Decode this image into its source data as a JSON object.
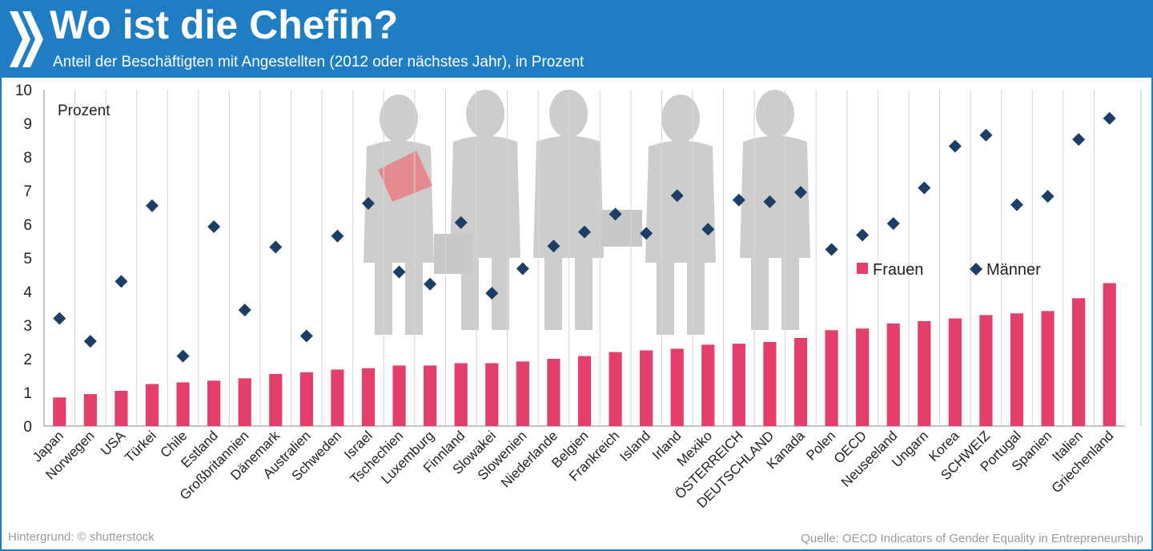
{
  "header": {
    "title": "Wo ist die Chefin?",
    "subtitle": "Anteil der Beschäftigten mit Angestellten (2012 oder nächstes Jahr), in Prozent"
  },
  "footer": {
    "background_credit": "Hintergrund: © shutterstock",
    "source": "Quelle: OECD Indicators of Gender Equality in Entrepreneurship"
  },
  "colors": {
    "header_bg": "#1f7ec3",
    "frauen": "#e33f6a",
    "maenner": "#1c3d66",
    "silhouette": "#c8c8c8"
  },
  "chart_data": {
    "type": "bar",
    "ylabel": "Prozent",
    "ylim": [
      0,
      10
    ],
    "yticks": [
      "0",
      "1",
      "2",
      "3",
      "4",
      "5",
      "6",
      "7",
      "8",
      "9",
      "10"
    ],
    "grid": "vertical",
    "legend": {
      "position": "center-right",
      "frauen_label": "Frauen",
      "maenner_label": "Männer"
    },
    "categories": [
      "Japan",
      "Norwegen",
      "USA",
      "Türkei",
      "Chile",
      "Estland",
      "Großbritannien",
      "Dänemark",
      "Australien",
      "Schweden",
      "Israel",
      "Tschechien",
      "Luxemburg",
      "Finnland",
      "Slowakei",
      "Slowenien",
      "Niederlande",
      "Belgien",
      "Frankreich",
      "Island",
      "Irland",
      "Mexiko",
      "ÖSTERREICH",
      "DEUTSCHLAND",
      "Kanada",
      "Polen",
      "OECD",
      "Neuseeland",
      "Ungarn",
      "Korea",
      "SCHWEIZ",
      "Portugal",
      "Spanien",
      "Italien",
      "Griechenland"
    ],
    "series": [
      {
        "name": "Frauen",
        "marker": "bar",
        "values": [
          0.85,
          0.95,
          1.05,
          1.25,
          1.3,
          1.35,
          1.42,
          1.55,
          1.6,
          1.68,
          1.72,
          1.8,
          1.8,
          1.87,
          1.87,
          1.92,
          2.0,
          2.08,
          2.2,
          2.25,
          2.3,
          2.42,
          2.45,
          2.5,
          2.62,
          2.85,
          2.9,
          3.05,
          3.12,
          3.2,
          3.3,
          3.35,
          3.42,
          3.8,
          4.25
        ]
      },
      {
        "name": "Männer",
        "marker": "diamond",
        "values": [
          3.2,
          2.52,
          4.3,
          6.55,
          2.08,
          5.93,
          3.45,
          5.32,
          2.68,
          5.65,
          6.62,
          4.58,
          4.22,
          6.05,
          3.95,
          4.68,
          5.35,
          5.77,
          6.3,
          5.73,
          6.85,
          5.85,
          6.72,
          6.67,
          6.95,
          5.25,
          5.68,
          6.02,
          7.08,
          8.32,
          8.65,
          6.58,
          6.83,
          8.52,
          9.15
        ]
      }
    ]
  }
}
